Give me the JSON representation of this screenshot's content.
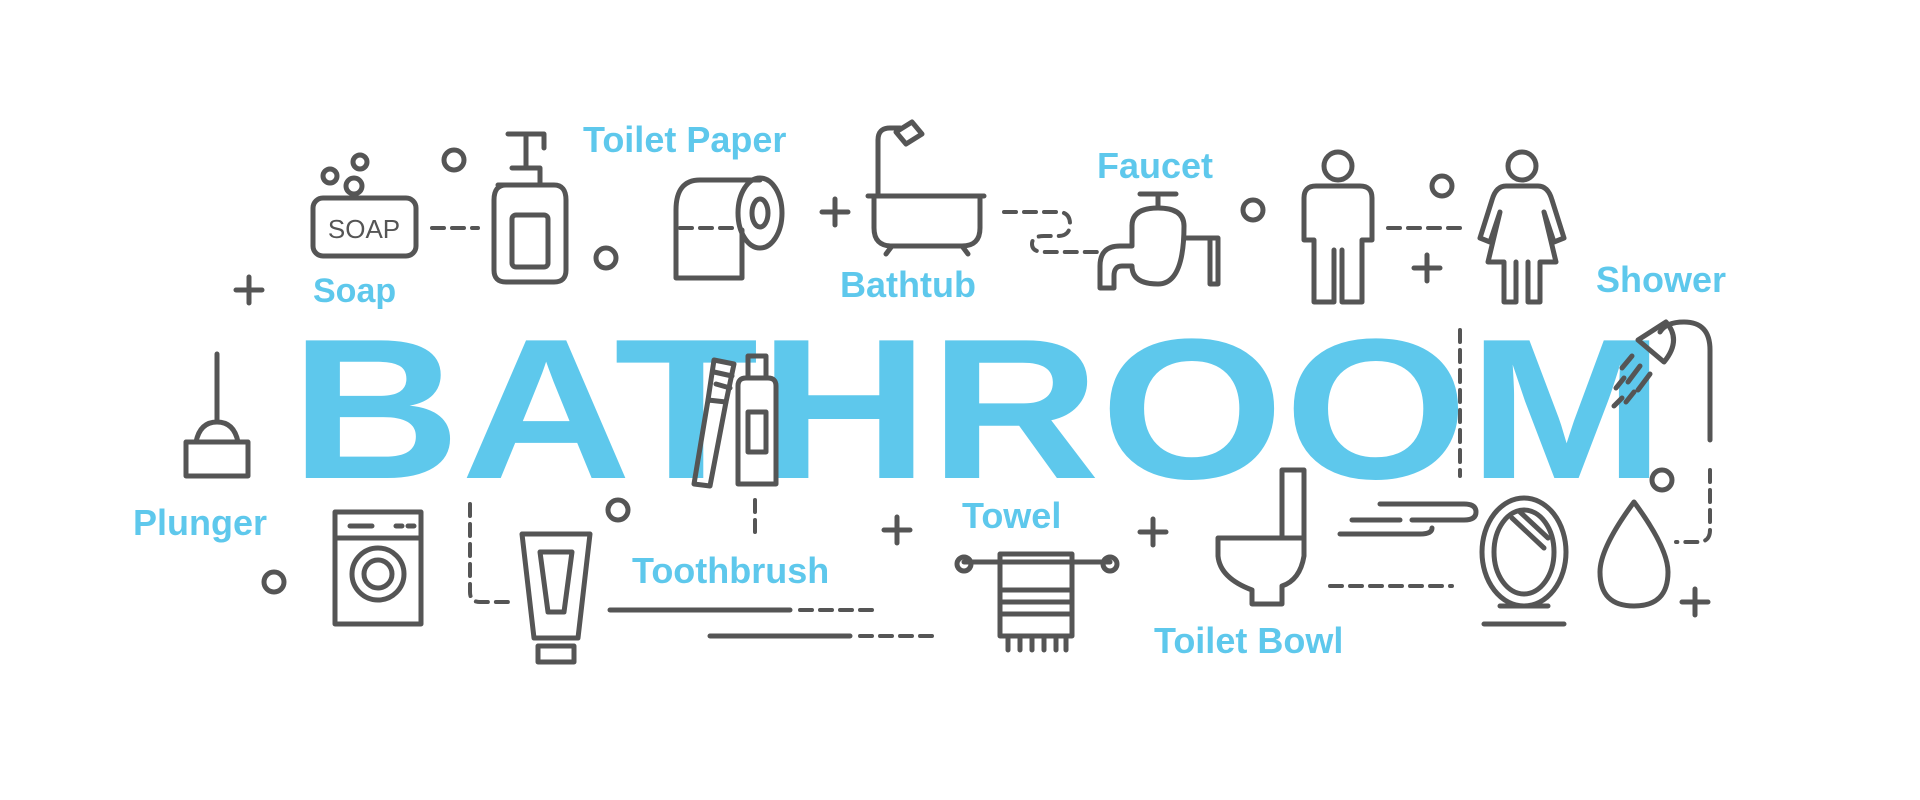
{
  "title": "BATHROOM",
  "labels": {
    "soap": "Soap",
    "soap_bar_text": "SOAP",
    "toilet_paper": "Toilet Paper",
    "bathtub": "Bathtub",
    "faucet": "Faucet",
    "shower": "Shower",
    "plunger": "Plunger",
    "toothbrush": "Toothbrush",
    "towel": "Towel",
    "toilet_bowl": "Toilet Bowl"
  },
  "colors": {
    "accent": "#5ec8ec",
    "icon": "#555555",
    "background": "#ffffff"
  }
}
